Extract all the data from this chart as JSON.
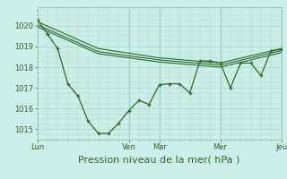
{
  "background_color": "#cceee8",
  "grid_color": "#aaddcc",
  "line_color": "#2d6a2d",
  "xlabel": "Pression niveau de la mer( hPa )",
  "xlabel_fontsize": 8,
  "ylim": [
    1014.5,
    1020.9
  ],
  "yticks": [
    1015,
    1016,
    1017,
    1018,
    1019,
    1020
  ],
  "xtick_labels": [
    "Lun",
    "Ven",
    "Mar",
    "Mer",
    "Jeu"
  ],
  "xtick_positions": [
    0,
    9,
    12,
    18,
    24
  ],
  "line1_x": [
    0,
    1,
    2,
    3,
    4,
    5,
    6,
    7,
    8,
    9,
    10,
    11,
    12,
    13,
    14,
    15,
    16,
    17,
    18,
    19,
    20,
    21,
    22,
    23,
    24
  ],
  "line1_y": [
    1020.3,
    1019.6,
    1018.9,
    1017.2,
    1016.6,
    1015.4,
    1014.8,
    1014.8,
    1015.3,
    1015.9,
    1016.4,
    1016.2,
    1017.15,
    1017.2,
    1017.2,
    1016.75,
    1018.3,
    1018.3,
    1018.2,
    1017.0,
    1018.2,
    1018.2,
    1017.6,
    1018.8,
    1018.85
  ],
  "line2_x": [
    0,
    6,
    12,
    18,
    24
  ],
  "line2_y": [
    1020.2,
    1018.9,
    1018.45,
    1018.2,
    1018.9
  ],
  "line3_x": [
    0,
    6,
    12,
    18,
    24
  ],
  "line3_y": [
    1020.05,
    1018.75,
    1018.35,
    1018.1,
    1018.8
  ],
  "line4_x": [
    0,
    6,
    12,
    18,
    24
  ],
  "line4_y": [
    1019.95,
    1018.65,
    1018.25,
    1018.0,
    1018.7
  ],
  "vlines_x": [
    9,
    12,
    18,
    24
  ],
  "figsize": [
    3.2,
    2.0
  ],
  "dpi": 100
}
